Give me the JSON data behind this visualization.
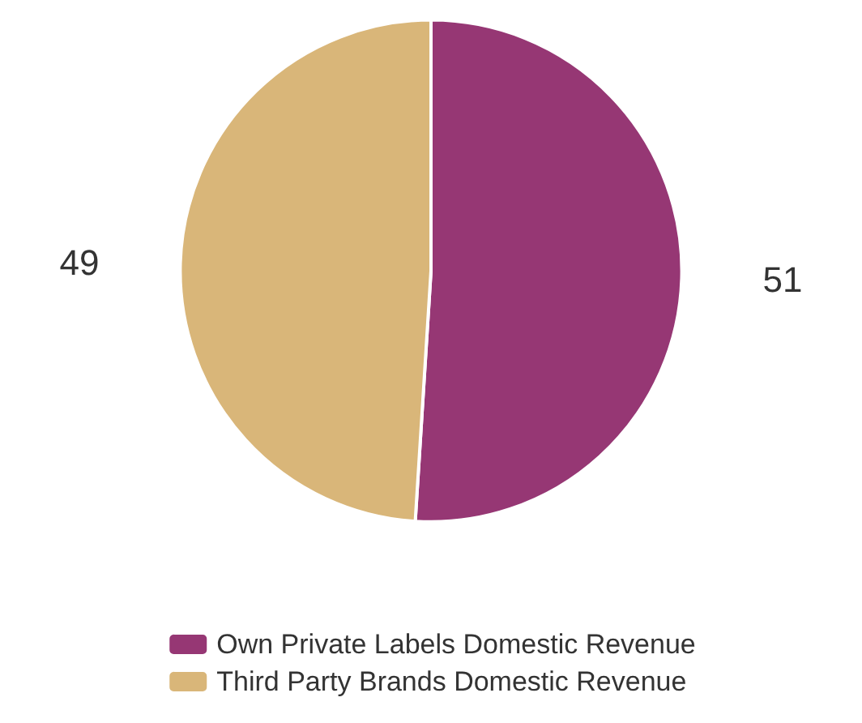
{
  "chart_data": {
    "type": "pie",
    "categories": [
      "Own Private Labels Domestic Revenue",
      "Third Party Brands Domestic Revenue"
    ],
    "values": [
      51,
      49
    ],
    "colors": [
      "#963774",
      "#d9b679"
    ],
    "data_labels": true,
    "legend": "bottom"
  }
}
